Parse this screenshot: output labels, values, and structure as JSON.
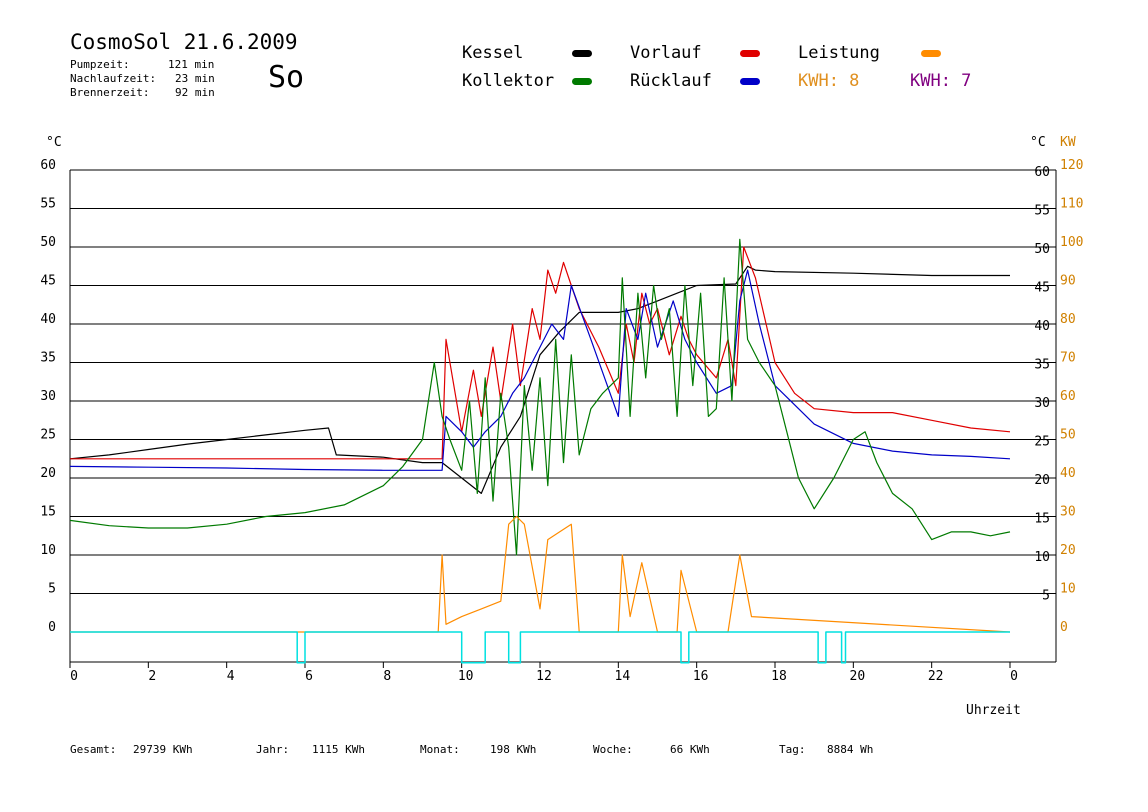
{
  "header": {
    "title": "CosmoSol 21.6.2009",
    "day_label": "So",
    "pumpzeit_label": "Pumpzeit:",
    "pumpzeit_value": "121 min",
    "nachlauf_label": "Nachlaufzeit:",
    "nachlauf_value": "23 min",
    "brenner_label": "Brennerzeit:",
    "brenner_value": "92 min"
  },
  "legend": {
    "kessel": "Kessel",
    "kollektor": "Kollektor",
    "vorlauf": "Vorlauf",
    "ruecklauf": "Rücklauf",
    "leistung": "Leistung",
    "kwh1": "KWH: 8",
    "kwh2": "KWH: 7"
  },
  "colors": {
    "kessel": "#000000",
    "kollektor": "#007a00",
    "vorlauf": "#e00000",
    "ruecklauf": "#0000c8",
    "leistung": "#ff8c00",
    "kwh1": "#e09020",
    "kwh2": "#800080",
    "pump": "#00e0e0",
    "axis_right_kw": "#d08000"
  },
  "footer": {
    "gesamt": "Gesamt:",
    "gesamt_value": "29739 KWh",
    "jahr": "Jahr:",
    "jahr_value": "1115 KWh",
    "monat": "Monat:",
    "monat_value": "198 KWh",
    "woche": "Woche:",
    "woche_value": "66 KWh",
    "tag": "Tag:",
    "tag_value": "8884 Wh"
  },
  "chart_data": {
    "type": "line",
    "xlabel": "Uhrzeit",
    "ylabel_left": "°C",
    "ylabel_right": "°C",
    "ylabel_right2": "KW",
    "xlim": [
      0,
      24
    ],
    "ylim": [
      0,
      60
    ],
    "x_ticks": [
      "0",
      "2",
      "4",
      "6",
      "8",
      "10",
      "12",
      "14",
      "16",
      "18",
      "20",
      "22",
      "0"
    ],
    "y_ticks_left": [
      "0",
      "5",
      "10",
      "15",
      "20",
      "25",
      "30",
      "35",
      "40",
      "45",
      "50",
      "55",
      "60"
    ],
    "y_ticks_right": [
      "5",
      "10",
      "15",
      "20",
      "25",
      "30",
      "35",
      "40",
      "45",
      "50",
      "55",
      "60"
    ],
    "y_ticks_kw": [
      "0",
      "10",
      "20",
      "30",
      "40",
      "50",
      "60",
      "70",
      "80",
      "90",
      "100",
      "110",
      "120"
    ],
    "grid": true,
    "legend_position": "top",
    "series": [
      {
        "name": "Kessel",
        "color_key": "kessel",
        "x": [
          0,
          1,
          2,
          3,
          4,
          5,
          6,
          6.6,
          6.8,
          8,
          9,
          9.5,
          10,
          10.5,
          11,
          11.5,
          12,
          12.5,
          13,
          14,
          14.5,
          15,
          15.5,
          16,
          17,
          17.3,
          17.5,
          18,
          20,
          22,
          24
        ],
        "y": [
          22.5,
          23,
          23.7,
          24.4,
          25,
          25.6,
          26.2,
          26.5,
          23,
          22.7,
          22,
          22,
          20,
          18,
          24,
          28,
          36,
          39,
          41.5,
          41.5,
          42,
          43,
          44,
          45,
          45.2,
          47.5,
          47,
          46.8,
          46.6,
          46.3,
          46.3
        ]
      },
      {
        "name": "Vorlauf",
        "color_key": "vorlauf",
        "x": [
          0,
          2,
          4,
          6,
          8,
          9.5,
          9.6,
          10,
          10.3,
          10.5,
          10.8,
          11,
          11.3,
          11.5,
          11.8,
          12,
          12.2,
          12.4,
          12.6,
          12.8,
          13,
          13.5,
          14,
          14.2,
          14.4,
          14.6,
          14.8,
          15,
          15.3,
          15.6,
          15.8,
          16,
          16.5,
          16.8,
          17,
          17.2,
          17.5,
          18,
          18.5,
          19,
          20,
          21,
          22,
          23,
          24
        ],
        "y": [
          22.5,
          22.5,
          22.5,
          22.5,
          22.5,
          22.5,
          38,
          26,
          34,
          28,
          37,
          30,
          40,
          32,
          42,
          38,
          47,
          44,
          48,
          45,
          42,
          37,
          31,
          40,
          35,
          44,
          40,
          42,
          36,
          41,
          38,
          36,
          33,
          38,
          32,
          50,
          46,
          35,
          31,
          29,
          28.5,
          28.5,
          27.5,
          26.5,
          26
        ]
      },
      {
        "name": "Rücklauf",
        "color_key": "ruecklauf",
        "x": [
          0,
          2,
          4,
          6,
          8,
          9.5,
          9.6,
          10,
          10.3,
          10.6,
          11,
          11.3,
          11.6,
          12,
          12.3,
          12.6,
          12.8,
          13.3,
          14,
          14.2,
          14.5,
          14.7,
          15,
          15.4,
          15.7,
          16,
          16.5,
          16.9,
          17.1,
          17.3,
          17.6,
          18,
          19,
          20,
          21,
          22,
          23,
          24
        ],
        "y": [
          21.5,
          21.4,
          21.3,
          21.1,
          21,
          21,
          28,
          26,
          24,
          26,
          28,
          31,
          33,
          37,
          40,
          38,
          45,
          38,
          28,
          42,
          38,
          44,
          37,
          43,
          38,
          35,
          31,
          32,
          43,
          47,
          40,
          32,
          27,
          24.5,
          23.5,
          23,
          22.8,
          22.5
        ]
      },
      {
        "name": "Kollektor",
        "color_key": "kollektor",
        "x": [
          0,
          1,
          2,
          3,
          4,
          5,
          6,
          7,
          8,
          8.5,
          9,
          9.3,
          9.5,
          9.7,
          10,
          10.2,
          10.4,
          10.6,
          10.8,
          11,
          11.2,
          11.4,
          11.6,
          11.8,
          12,
          12.2,
          12.4,
          12.6,
          12.8,
          13,
          13.3,
          13.6,
          14,
          14.1,
          14.3,
          14.5,
          14.7,
          14.9,
          15.1,
          15.3,
          15.5,
          15.7,
          15.9,
          16.1,
          16.3,
          16.5,
          16.7,
          16.9,
          17.1,
          17.3,
          17.6,
          18,
          18.3,
          18.6,
          19,
          19.5,
          20,
          20.3,
          20.6,
          21,
          21.5,
          22,
          22.5,
          23,
          23.5,
          24
        ],
        "y": [
          14.5,
          13.8,
          13.5,
          13.5,
          14,
          15,
          15.5,
          16.5,
          19,
          21.5,
          25,
          35,
          28,
          25,
          21,
          30,
          18,
          33,
          17,
          31,
          24,
          10,
          32,
          21,
          33,
          19,
          38,
          22,
          36,
          23,
          29,
          31,
          33,
          46,
          28,
          44,
          33,
          45,
          38,
          42,
          28,
          45,
          32,
          44,
          28,
          29,
          46,
          30,
          51,
          38,
          35,
          32,
          26,
          20,
          16,
          20,
          25,
          26,
          22,
          18,
          16,
          12,
          13,
          13,
          12.5,
          13
        ]
      },
      {
        "name": "Leistung",
        "color_key": "leistung",
        "x": [
          0,
          9.4,
          9.5,
          9.6,
          10,
          10.5,
          11,
          11.2,
          11.4,
          11.6,
          12,
          12.2,
          12.5,
          12.8,
          13,
          14,
          14.1,
          14.3,
          14.6,
          15,
          15.5,
          15.6,
          16,
          16.8,
          17.1,
          17.4,
          24
        ],
        "y": [
          0,
          0,
          10,
          1,
          2,
          3,
          4,
          14,
          15,
          14,
          3,
          12,
          13,
          14,
          0,
          0,
          10,
          2,
          9,
          0,
          0,
          8,
          0,
          0,
          10,
          2,
          0
        ]
      },
      {
        "name": "Pumpe",
        "color_key": "pump",
        "x": [
          0,
          5.8,
          5.8,
          6.0,
          6.0,
          10.0,
          10.0,
          10.6,
          10.6,
          11.2,
          11.2,
          11.5,
          11.5,
          15.6,
          15.6,
          15.8,
          15.8,
          19.1,
          19.1,
          19.3,
          19.3,
          19.7,
          19.7,
          19.8,
          19.8,
          24
        ],
        "y": [
          0,
          0,
          -4,
          -4,
          0,
          0,
          -4,
          -4,
          0,
          0,
          -4,
          -4,
          0,
          0,
          -4,
          -4,
          0,
          0,
          -4,
          -4,
          0,
          0,
          -4,
          -4,
          0,
          0
        ]
      }
    ]
  }
}
